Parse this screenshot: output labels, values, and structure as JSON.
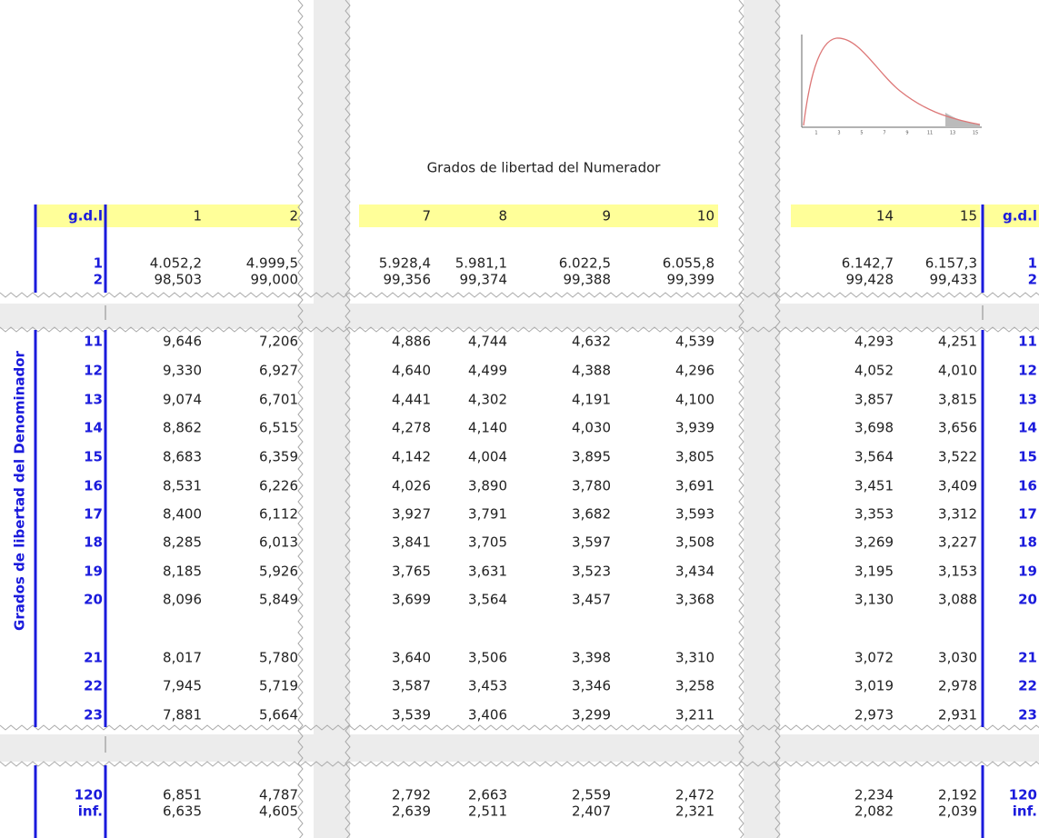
{
  "table": {
    "numerator_title": "Grados de libertad del Numerador",
    "denominator_title": "Grados de libertad del Denominador",
    "corner_left": "g.d.l",
    "corner_right": "g.d.l",
    "columns": [
      "1",
      "2",
      "7",
      "8",
      "9",
      "10",
      "14",
      "15"
    ],
    "rows": [
      {
        "label": "1",
        "values": [
          "4.052,2",
          "4.999,5",
          "5.928,4",
          "5.981,1",
          "6.022,5",
          "6.055,8",
          "6.142,7",
          "6.157,3"
        ]
      },
      {
        "label": "2",
        "values": [
          "98,503",
          "99,000",
          "99,356",
          "99,374",
          "99,388",
          "99,399",
          "99,428",
          "99,433"
        ]
      },
      {
        "label": "11",
        "values": [
          "9,646",
          "7,206",
          "4,886",
          "4,744",
          "4,632",
          "4,539",
          "4,293",
          "4,251"
        ]
      },
      {
        "label": "12",
        "values": [
          "9,330",
          "6,927",
          "4,640",
          "4,499",
          "4,388",
          "4,296",
          "4,052",
          "4,010"
        ]
      },
      {
        "label": "13",
        "values": [
          "9,074",
          "6,701",
          "4,441",
          "4,302",
          "4,191",
          "4,100",
          "3,857",
          "3,815"
        ]
      },
      {
        "label": "14",
        "values": [
          "8,862",
          "6,515",
          "4,278",
          "4,140",
          "4,030",
          "3,939",
          "3,698",
          "3,656"
        ]
      },
      {
        "label": "15",
        "values": [
          "8,683",
          "6,359",
          "4,142",
          "4,004",
          "3,895",
          "3,805",
          "3,564",
          "3,522"
        ]
      },
      {
        "label": "16",
        "values": [
          "8,531",
          "6,226",
          "4,026",
          "3,890",
          "3,780",
          "3,691",
          "3,451",
          "3,409"
        ]
      },
      {
        "label": "17",
        "values": [
          "8,400",
          "6,112",
          "3,927",
          "3,791",
          "3,682",
          "3,593",
          "3,353",
          "3,312"
        ]
      },
      {
        "label": "18",
        "values": [
          "8,285",
          "6,013",
          "3,841",
          "3,705",
          "3,597",
          "3,508",
          "3,269",
          "3,227"
        ]
      },
      {
        "label": "19",
        "values": [
          "8,185",
          "5,926",
          "3,765",
          "3,631",
          "3,523",
          "3,434",
          "3,195",
          "3,153"
        ]
      },
      {
        "label": "20",
        "values": [
          "8,096",
          "5,849",
          "3,699",
          "3,564",
          "3,457",
          "3,368",
          "3,130",
          "3,088"
        ]
      },
      {
        "label": "21",
        "values": [
          "8,017",
          "5,780",
          "3,640",
          "3,506",
          "3,398",
          "3,310",
          "3,072",
          "3,030"
        ]
      },
      {
        "label": "22",
        "values": [
          "7,945",
          "5,719",
          "3,587",
          "3,453",
          "3,346",
          "3,258",
          "3,019",
          "2,978"
        ]
      },
      {
        "label": "23",
        "values": [
          "7,881",
          "5,664",
          "3,539",
          "3,406",
          "3,299",
          "3,211",
          "2,973",
          "2,931"
        ]
      },
      {
        "label": "120",
        "values": [
          "6,851",
          "4,787",
          "2,792",
          "2,663",
          "2,559",
          "2,472",
          "2,234",
          "2,192"
        ]
      },
      {
        "label": "inf.",
        "values": [
          "6,635",
          "4,605",
          "2,639",
          "2,511",
          "2,407",
          "2,321",
          "2,082",
          "2,039"
        ]
      }
    ]
  },
  "thumbnail": {
    "ticks": [
      "1",
      "3",
      "5",
      "7",
      "9",
      "11",
      "13",
      "15"
    ]
  }
}
